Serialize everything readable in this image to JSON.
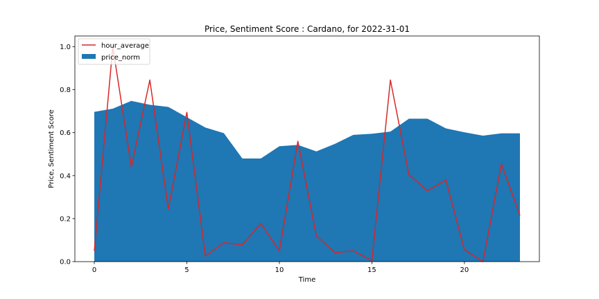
{
  "chart_data": {
    "type": "area",
    "title": "Price, Sentiment Score : Cardano, for 2022-31-01",
    "xlabel": "Time",
    "ylabel": "Price, Sentiment Score",
    "xlim": [
      -1.05,
      24.05
    ],
    "ylim": [
      0.0,
      1.05
    ],
    "xticks": [
      0,
      5,
      10,
      15,
      20
    ],
    "yticks": [
      0.0,
      0.2,
      0.4,
      0.6,
      0.8,
      1.0
    ],
    "ytick_labels": [
      "0.0",
      "0.2",
      "0.4",
      "0.6",
      "0.8",
      "1.0"
    ],
    "grid": false,
    "legend_position": "top-left",
    "x": [
      0,
      1,
      2,
      3,
      4,
      5,
      6,
      7,
      8,
      9,
      10,
      11,
      12,
      13,
      14,
      15,
      16,
      17,
      18,
      19,
      20,
      21,
      22,
      23
    ],
    "series": [
      {
        "name": "hour_average",
        "kind": "line",
        "color": "#d62728",
        "values": [
          0.05,
          1.0,
          0.44,
          0.845,
          0.245,
          0.695,
          0.025,
          0.088,
          0.078,
          0.178,
          0.05,
          0.56,
          0.12,
          0.042,
          0.05,
          0.005,
          0.845,
          0.405,
          0.33,
          0.38,
          0.055,
          0.0,
          0.455,
          0.215
        ]
      },
      {
        "name": "price_norm",
        "kind": "area",
        "color": "#1f77b4",
        "values": [
          0.697,
          0.712,
          0.748,
          0.73,
          0.72,
          0.672,
          0.624,
          0.598,
          0.48,
          0.48,
          0.537,
          0.543,
          0.513,
          0.548,
          0.59,
          0.595,
          0.605,
          0.665,
          0.665,
          0.62,
          0.602,
          0.586,
          0.597,
          0.597
        ]
      }
    ]
  }
}
